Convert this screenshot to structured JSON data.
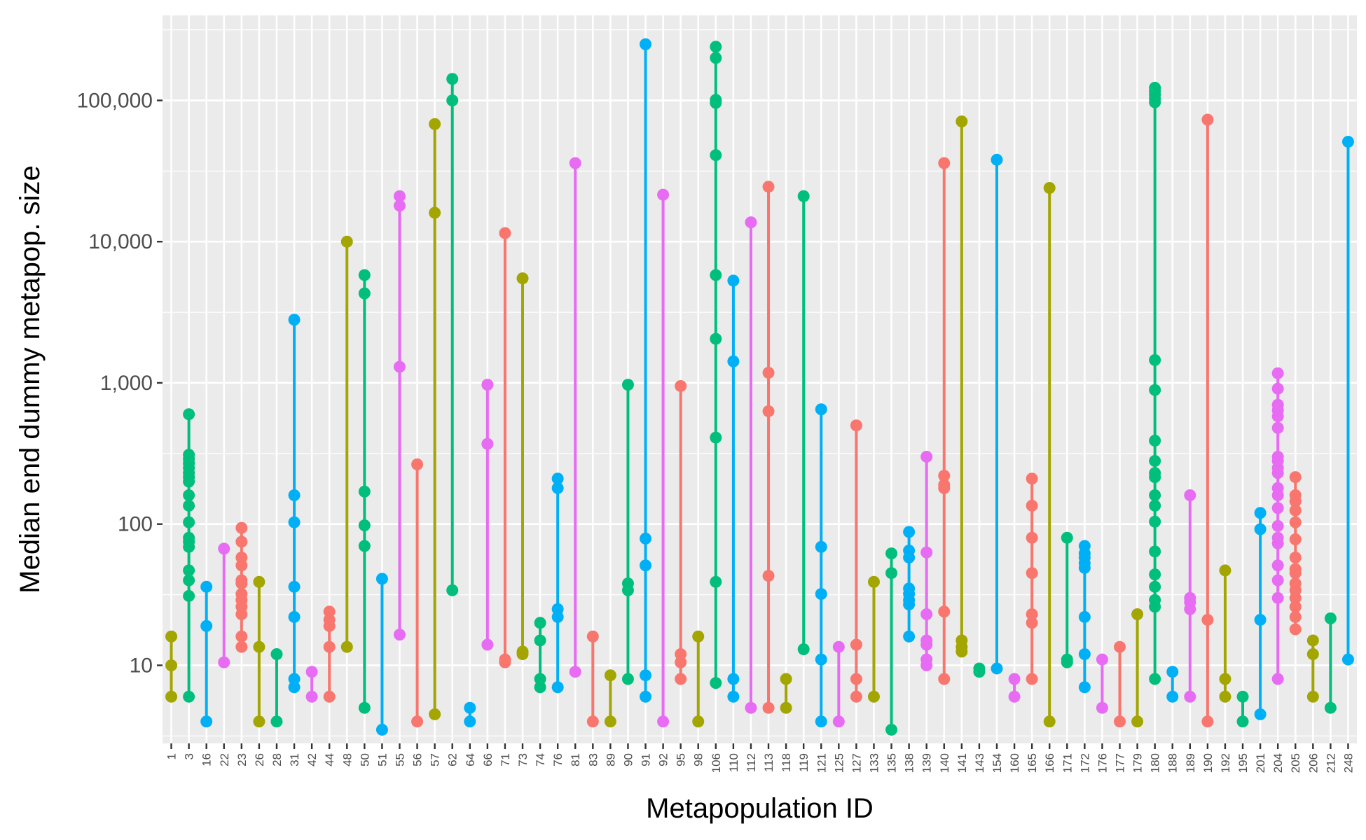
{
  "chart_data": {
    "type": "scatter",
    "title": "",
    "xlabel": "Metapopulation ID",
    "ylabel": "Median end dummy metapop. size",
    "y_scale": "log10",
    "ylim": [
      2.8,
      400000
    ],
    "y_ticks": [
      10,
      100,
      1000,
      10000,
      100000
    ],
    "y_tick_labels": [
      "10",
      "100",
      "1,000",
      "10,000",
      "100,000"
    ],
    "grid": true,
    "legend": "none",
    "palette": [
      "#F8766D",
      "#A3A500",
      "#00BF7D",
      "#00B0F6",
      "#E76BF3"
    ],
    "groups": [
      {
        "id": "1",
        "color": "#A3A500",
        "values": [
          6,
          10,
          16
        ]
      },
      {
        "id": "3",
        "color": "#00BF7D",
        "values": [
          6,
          31,
          40,
          47,
          69,
          75,
          80,
          103,
          135,
          160,
          200,
          215,
          230,
          250,
          270,
          290,
          310,
          600
        ]
      },
      {
        "id": "16",
        "color": "#00B0F6",
        "values": [
          4,
          19,
          36
        ]
      },
      {
        "id": "22",
        "color": "#E76BF3",
        "values": [
          10.5,
          67
        ]
      },
      {
        "id": "23",
        "color": "#F8766D",
        "values": [
          13.5,
          16,
          23,
          26,
          29,
          32,
          38,
          40,
          51,
          58,
          75,
          94
        ]
      },
      {
        "id": "26",
        "color": "#A3A500",
        "values": [
          4,
          13.5,
          39
        ]
      },
      {
        "id": "28",
        "color": "#00BF7D",
        "values": [
          4,
          12
        ]
      },
      {
        "id": "31",
        "color": "#00B0F6",
        "values": [
          7,
          8,
          22,
          36,
          103,
          160,
          2800
        ]
      },
      {
        "id": "42",
        "color": "#E76BF3",
        "values": [
          6,
          9
        ]
      },
      {
        "id": "44",
        "color": "#F8766D",
        "values": [
          6,
          13.5,
          19,
          21,
          24
        ]
      },
      {
        "id": "48",
        "color": "#A3A500",
        "values": [
          13.5,
          10000
        ]
      },
      {
        "id": "50",
        "color": "#00BF7D",
        "values": [
          5,
          70,
          98,
          170,
          4300,
          5800
        ]
      },
      {
        "id": "51",
        "color": "#00B0F6",
        "values": [
          3.5,
          41
        ]
      },
      {
        "id": "55",
        "color": "#E76BF3",
        "values": [
          16.5,
          1300,
          18000,
          21000
        ]
      },
      {
        "id": "56",
        "color": "#F8766D",
        "values": [
          4,
          265
        ]
      },
      {
        "id": "57",
        "color": "#A3A500",
        "values": [
          4.5,
          16000,
          68000
        ]
      },
      {
        "id": "62",
        "color": "#00BF7D",
        "values": [
          34,
          100000,
          142000
        ]
      },
      {
        "id": "64",
        "color": "#00B0F6",
        "values": [
          4,
          5
        ]
      },
      {
        "id": "66",
        "color": "#E76BF3",
        "values": [
          14,
          370,
          970
        ]
      },
      {
        "id": "71",
        "color": "#F8766D",
        "values": [
          10.5,
          11,
          11500
        ]
      },
      {
        "id": "73",
        "color": "#A3A500",
        "values": [
          12,
          12.5,
          5500
        ]
      },
      {
        "id": "74",
        "color": "#00BF7D",
        "values": [
          7,
          8,
          15,
          20
        ]
      },
      {
        "id": "76",
        "color": "#00B0F6",
        "values": [
          7,
          22,
          25,
          180,
          210
        ]
      },
      {
        "id": "81",
        "color": "#E76BF3",
        "values": [
          9,
          36000
        ]
      },
      {
        "id": "83",
        "color": "#F8766D",
        "values": [
          4,
          16
        ]
      },
      {
        "id": "89",
        "color": "#A3A500",
        "values": [
          4,
          8.5
        ]
      },
      {
        "id": "90",
        "color": "#00BF7D",
        "values": [
          8,
          34,
          38,
          970
        ]
      },
      {
        "id": "91",
        "color": "#00B0F6",
        "values": [
          6,
          8.5,
          51,
          79,
          250000
        ]
      },
      {
        "id": "92",
        "color": "#E76BF3",
        "values": [
          4,
          21500
        ]
      },
      {
        "id": "95",
        "color": "#F8766D",
        "values": [
          8,
          10.5,
          12,
          950
        ]
      },
      {
        "id": "98",
        "color": "#A3A500",
        "values": [
          4,
          16
        ]
      },
      {
        "id": "106",
        "color": "#00BF7D",
        "values": [
          7.5,
          39,
          410,
          2050,
          5800,
          41000,
          96000,
          101000,
          200000,
          240000
        ]
      },
      {
        "id": "110",
        "color": "#00B0F6",
        "values": [
          6,
          8,
          1420,
          5300
        ]
      },
      {
        "id": "112",
        "color": "#E76BF3",
        "values": [
          5,
          13700
        ]
      },
      {
        "id": "113",
        "color": "#F8766D",
        "values": [
          5,
          43,
          630,
          1180,
          24500
        ]
      },
      {
        "id": "118",
        "color": "#A3A500",
        "values": [
          5,
          8
        ]
      },
      {
        "id": "119",
        "color": "#00BF7D",
        "values": [
          13,
          21000
        ]
      },
      {
        "id": "121",
        "color": "#00B0F6",
        "values": [
          4,
          11,
          32,
          69,
          650
        ]
      },
      {
        "id": "125",
        "color": "#E76BF3",
        "values": [
          4,
          13.5
        ]
      },
      {
        "id": "127",
        "color": "#F8766D",
        "values": [
          6,
          8,
          14,
          500
        ]
      },
      {
        "id": "133",
        "color": "#A3A500",
        "values": [
          6,
          39
        ]
      },
      {
        "id": "135",
        "color": "#00BF7D",
        "values": [
          3.5,
          45,
          62
        ]
      },
      {
        "id": "138",
        "color": "#00B0F6",
        "values": [
          16,
          27,
          29,
          32,
          35,
          58,
          65,
          88
        ]
      },
      {
        "id": "139",
        "color": "#E76BF3",
        "values": [
          10,
          11,
          14,
          15,
          23,
          63,
          300
        ]
      },
      {
        "id": "140",
        "color": "#F8766D",
        "values": [
          8,
          24,
          180,
          190,
          220,
          36000
        ]
      },
      {
        "id": "141",
        "color": "#A3A500",
        "values": [
          12.5,
          13.5,
          15,
          71000
        ]
      },
      {
        "id": "143",
        "color": "#00BF7D",
        "values": [
          9,
          9.5
        ]
      },
      {
        "id": "154",
        "color": "#00B0F6",
        "values": [
          9.5,
          38000
        ]
      },
      {
        "id": "160",
        "color": "#E76BF3",
        "values": [
          6,
          8
        ]
      },
      {
        "id": "165",
        "color": "#F8766D",
        "values": [
          8,
          20,
          23,
          45,
          80,
          135,
          210
        ]
      },
      {
        "id": "166",
        "color": "#A3A500",
        "values": [
          4,
          24000
        ]
      },
      {
        "id": "171",
        "color": "#00BF7D",
        "values": [
          10.5,
          11,
          80
        ]
      },
      {
        "id": "172",
        "color": "#00B0F6",
        "values": [
          7,
          12,
          22,
          49,
          53,
          58,
          62,
          70
        ]
      },
      {
        "id": "176",
        "color": "#E76BF3",
        "values": [
          5,
          11
        ]
      },
      {
        "id": "177",
        "color": "#F8766D",
        "values": [
          4,
          13.5
        ]
      },
      {
        "id": "179",
        "color": "#A3A500",
        "values": [
          4,
          23
        ]
      },
      {
        "id": "180",
        "color": "#00BF7D",
        "values": [
          8,
          26,
          29,
          36,
          44,
          64,
          104,
          135,
          160,
          215,
          230,
          280,
          390,
          890,
          1450,
          97000,
          103000,
          110000,
          117000,
          123000
        ]
      },
      {
        "id": "188",
        "color": "#00B0F6",
        "values": [
          6,
          9
        ]
      },
      {
        "id": "189",
        "color": "#E76BF3",
        "values": [
          6,
          25,
          28,
          30,
          160
        ]
      },
      {
        "id": "190",
        "color": "#F8766D",
        "values": [
          4,
          21,
          73000
        ]
      },
      {
        "id": "192",
        "color": "#A3A500",
        "values": [
          6,
          8,
          47
        ]
      },
      {
        "id": "195",
        "color": "#00BF7D",
        "values": [
          4,
          6
        ]
      },
      {
        "id": "201",
        "color": "#00B0F6",
        "values": [
          4.5,
          21,
          92,
          120
        ]
      },
      {
        "id": "204",
        "color": "#E76BF3",
        "values": [
          8,
          30,
          40,
          51,
          73,
          80,
          97,
          130,
          160,
          180,
          230,
          250,
          280,
          300,
          480,
          580,
          640,
          700,
          910,
          1170
        ]
      },
      {
        "id": "205",
        "color": "#F8766D",
        "values": [
          18,
          22,
          26,
          30,
          34,
          38,
          45,
          48,
          58,
          78,
          103,
          125,
          145,
          160,
          215
        ]
      },
      {
        "id": "206",
        "color": "#A3A500",
        "values": [
          6,
          12,
          15
        ]
      },
      {
        "id": "212",
        "color": "#00BF7D",
        "values": [
          5,
          21.5
        ]
      },
      {
        "id": "248",
        "color": "#00B0F6",
        "values": [
          11,
          51000
        ]
      }
    ]
  }
}
